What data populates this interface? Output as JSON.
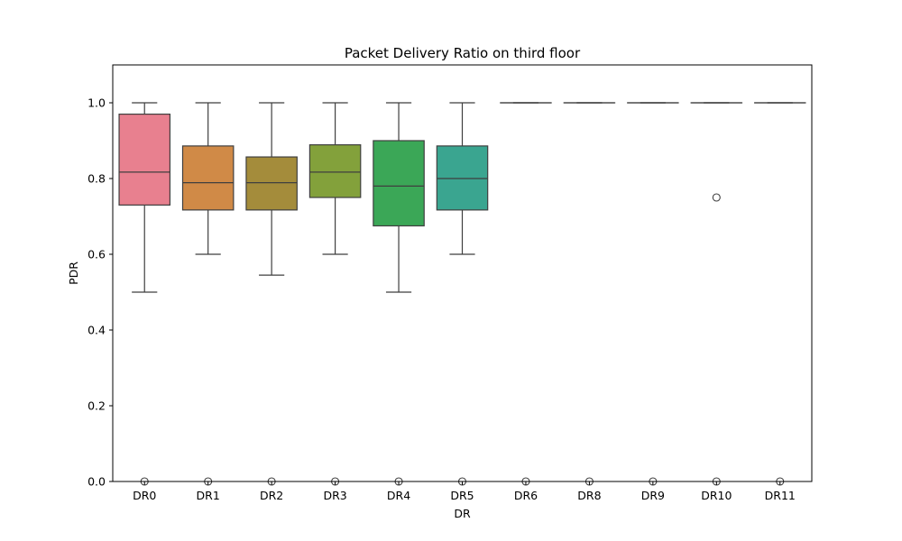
{
  "chart_data": {
    "type": "box",
    "title": "Packet Delivery Ratio on third floor",
    "xlabel": "DR",
    "ylabel": "PDR",
    "ylim": [
      0.0,
      1.1
    ],
    "yticks": [
      "0.0",
      "0.2",
      "0.4",
      "0.6",
      "0.8",
      "1.0"
    ],
    "grid": false,
    "categories": [
      "DR0",
      "DR1",
      "DR2",
      "DR3",
      "DR4",
      "DR5",
      "DR6",
      "DR8",
      "DR9",
      "DR10",
      "DR11"
    ],
    "boxes": [
      {
        "min": 0.5,
        "q1": 0.73,
        "median": 0.817,
        "q3": 0.97,
        "max": 1.0,
        "outliers": [
          0.0
        ],
        "color": "#e8808f"
      },
      {
        "min": 0.6,
        "q1": 0.717,
        "median": 0.789,
        "q3": 0.886,
        "max": 1.0,
        "outliers": [
          0.0
        ],
        "color": "#d08a47"
      },
      {
        "min": 0.545,
        "q1": 0.717,
        "median": 0.789,
        "q3": 0.857,
        "max": 1.0,
        "outliers": [
          0.0
        ],
        "color": "#a48c3b"
      },
      {
        "min": 0.6,
        "q1": 0.75,
        "median": 0.817,
        "q3": 0.889,
        "max": 1.0,
        "outliers": [
          0.0
        ],
        "color": "#83a13b"
      },
      {
        "min": 0.5,
        "q1": 0.675,
        "median": 0.78,
        "q3": 0.9,
        "max": 1.0,
        "outliers": [
          0.0
        ],
        "color": "#3ba757"
      },
      {
        "min": 0.6,
        "q1": 0.717,
        "median": 0.8,
        "q3": 0.886,
        "max": 1.0,
        "outliers": [
          0.0
        ],
        "color": "#3aa590"
      },
      {
        "min": 1.0,
        "q1": 1.0,
        "median": 1.0,
        "q3": 1.0,
        "max": 1.0,
        "outliers": [
          0.0
        ],
        "color": "#3ba3ab"
      },
      {
        "min": 1.0,
        "q1": 1.0,
        "median": 1.0,
        "q3": 1.0,
        "max": 1.0,
        "outliers": [
          0.0
        ],
        "color": "#3ea0c6"
      },
      {
        "min": 1.0,
        "q1": 1.0,
        "median": 1.0,
        "q3": 1.0,
        "max": 1.0,
        "outliers": [
          0.0
        ],
        "color": "#6e9ae3"
      },
      {
        "min": 1.0,
        "q1": 1.0,
        "median": 1.0,
        "q3": 1.0,
        "max": 1.0,
        "outliers": [
          0.75,
          0.0
        ],
        "color": "#b48ae6"
      },
      {
        "min": 1.0,
        "q1": 1.0,
        "median": 1.0,
        "q3": 1.0,
        "max": 1.0,
        "outliers": [
          0.0
        ],
        "color": "#e07fd4"
      }
    ]
  }
}
